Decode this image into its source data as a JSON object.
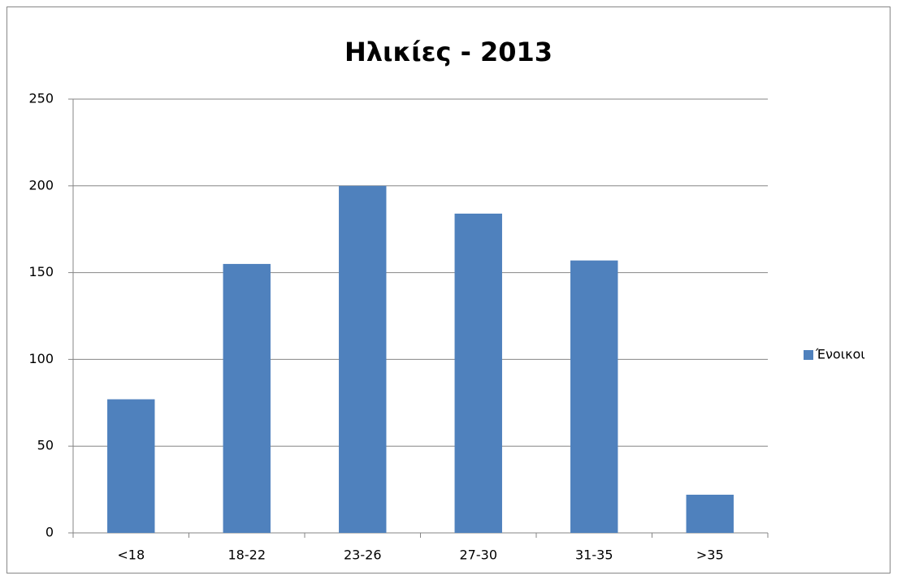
{
  "chart_data": {
    "type": "bar",
    "title": "Ηλικίες - 2013",
    "categories": [
      "<18",
      "18-22",
      "23-26",
      "27-30",
      "31-35",
      ">35"
    ],
    "series": [
      {
        "name": "Ένοικοι",
        "color": "#4f81bd",
        "values": [
          77,
          155,
          200,
          184,
          157,
          22
        ]
      }
    ],
    "ylim": [
      0,
      250
    ],
    "yticks": [
      0,
      50,
      100,
      150,
      200,
      250
    ],
    "grid": true,
    "legend": "right"
  }
}
